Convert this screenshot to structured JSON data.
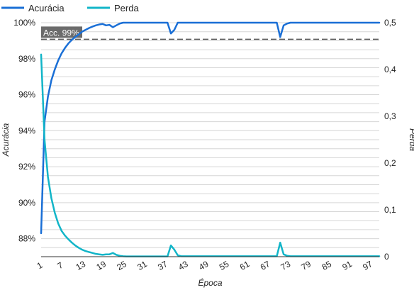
{
  "chart_data": {
    "type": "line",
    "xlabel": "Época",
    "ylabel_left": "Acurácia",
    "ylabel_right": "Perda",
    "x_ticks": [
      1,
      7,
      13,
      19,
      25,
      31,
      37,
      43,
      49,
      55,
      61,
      67,
      73,
      79,
      85,
      91,
      97
    ],
    "x_range": [
      1,
      100
    ],
    "y_left_range": [
      87,
      100
    ],
    "y_left_ticks": [
      {
        "value": 88,
        "label": "88%"
      },
      {
        "value": 90,
        "label": "90%"
      },
      {
        "value": 92,
        "label": "92%"
      },
      {
        "value": 94,
        "label": "94%"
      },
      {
        "value": 96,
        "label": "96%"
      },
      {
        "value": 98,
        "label": "98%"
      },
      {
        "value": 100,
        "label": "100%"
      }
    ],
    "y_right_range": [
      0,
      0.5
    ],
    "y_right_ticks": [
      {
        "value": 0,
        "label": "0"
      },
      {
        "value": 0.1,
        "label": "0,1"
      },
      {
        "value": 0.2,
        "label": "0,2"
      },
      {
        "value": 0.3,
        "label": "0,3"
      },
      {
        "value": 0.4,
        "label": "0,4"
      },
      {
        "value": 0.5,
        "label": "0,5"
      }
    ],
    "legend_position": "top-left",
    "grid": true,
    "reference_line": {
      "value": 99,
      "axis": "left",
      "label": "Acc. 99%",
      "style": "dashed"
    },
    "series": [
      {
        "name": "Acurácia",
        "axis": "left",
        "color": "#1a6fd6",
        "points": [
          [
            1,
            88.3
          ],
          [
            2,
            94.5
          ],
          [
            3,
            95.9
          ],
          [
            4,
            96.8
          ],
          [
            5,
            97.4
          ],
          [
            6,
            97.9
          ],
          [
            7,
            98.3
          ],
          [
            8,
            98.6
          ],
          [
            9,
            98.85
          ],
          [
            10,
            99.05
          ],
          [
            11,
            99.2
          ],
          [
            12,
            99.35
          ],
          [
            13,
            99.5
          ],
          [
            14,
            99.6
          ],
          [
            15,
            99.7
          ],
          [
            16,
            99.78
          ],
          [
            17,
            99.85
          ],
          [
            18,
            99.9
          ],
          [
            19,
            99.93
          ],
          [
            20,
            99.85
          ],
          [
            21,
            99.88
          ],
          [
            22,
            99.75
          ],
          [
            23,
            99.85
          ],
          [
            24,
            99.95
          ],
          [
            25,
            100
          ],
          [
            38,
            100
          ],
          [
            39,
            99.4
          ],
          [
            40,
            99.6
          ],
          [
            41,
            100
          ],
          [
            70,
            100
          ],
          [
            71,
            99.2
          ],
          [
            72,
            99.85
          ],
          [
            73,
            99.95
          ],
          [
            74,
            100
          ],
          [
            100,
            100
          ]
        ]
      },
      {
        "name": "Perda",
        "axis": "right",
        "color": "#12b5c8",
        "points": [
          [
            1,
            0.432
          ],
          [
            2,
            0.25
          ],
          [
            3,
            0.17
          ],
          [
            4,
            0.125
          ],
          [
            5,
            0.094
          ],
          [
            6,
            0.071
          ],
          [
            7,
            0.055
          ],
          [
            8,
            0.045
          ],
          [
            9,
            0.037
          ],
          [
            10,
            0.03
          ],
          [
            11,
            0.024
          ],
          [
            12,
            0.019
          ],
          [
            13,
            0.015
          ],
          [
            14,
            0.012
          ],
          [
            15,
            0.01
          ],
          [
            16,
            0.008
          ],
          [
            17,
            0.006
          ],
          [
            18,
            0.005
          ],
          [
            19,
            0.004
          ],
          [
            20,
            0.005
          ],
          [
            21,
            0.005
          ],
          [
            22,
            0.008
          ],
          [
            23,
            0.004
          ],
          [
            24,
            0.002
          ],
          [
            25,
            0.001
          ],
          [
            26,
            0.0005
          ],
          [
            38,
            0.0005
          ],
          [
            39,
            0.024
          ],
          [
            40,
            0.015
          ],
          [
            41,
            0.003
          ],
          [
            42,
            0.001
          ],
          [
            70,
            0.001
          ],
          [
            71,
            0.03
          ],
          [
            72,
            0.005
          ],
          [
            73,
            0.002
          ],
          [
            74,
            0.001
          ],
          [
            100,
            0.001
          ]
        ]
      }
    ]
  }
}
